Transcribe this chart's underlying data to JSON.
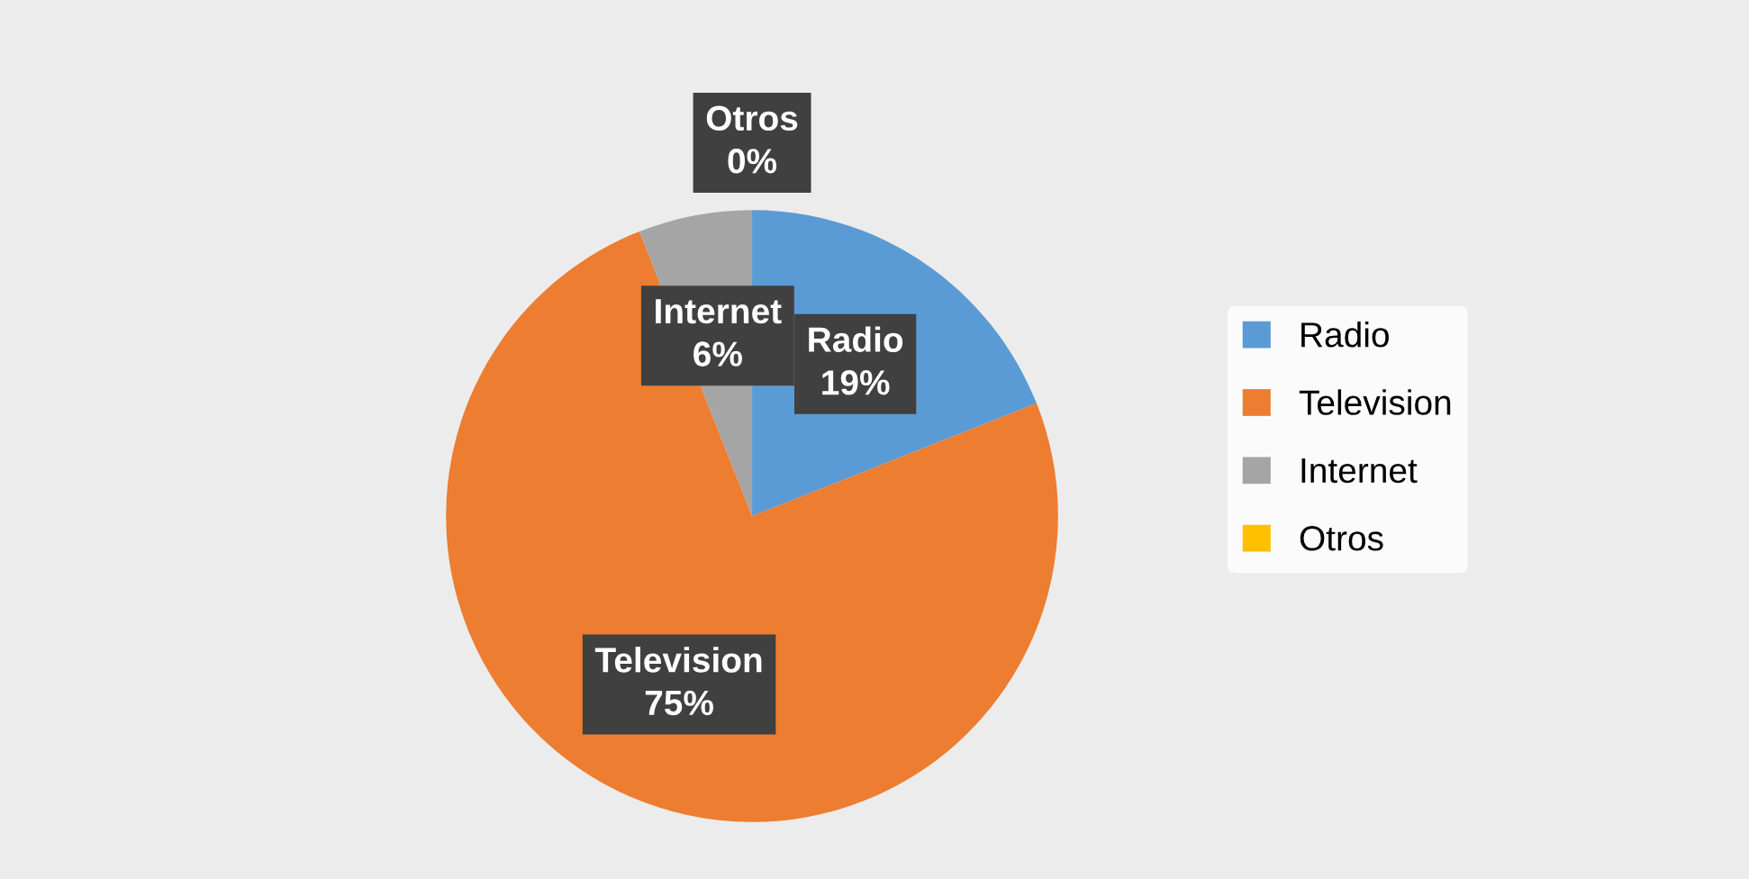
{
  "chart_data": {
    "type": "pie",
    "categories": [
      "Radio",
      "Television",
      "Internet",
      "Otros"
    ],
    "values": [
      19,
      75,
      6,
      0
    ],
    "colors": [
      "#5b9bd5",
      "#ed7d31",
      "#a5a5a5",
      "#ffc000"
    ],
    "value_labels": [
      "19%",
      "75%",
      "6%",
      "0%"
    ],
    "legend": "right"
  }
}
